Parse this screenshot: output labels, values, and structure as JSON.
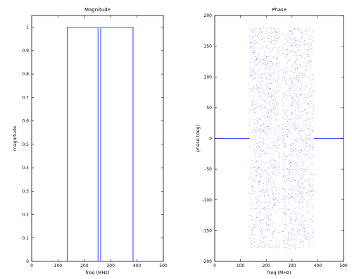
{
  "colors": {
    "line": "#3b4ff0",
    "axis": "#000000",
    "background": "#ffffff"
  },
  "chart_data": [
    {
      "type": "line",
      "title": "Magnitude",
      "xlabel": "freq (MHz)",
      "ylabel": "magnitude",
      "xlim": [
        0,
        500
      ],
      "ylim": [
        0,
        1.05
      ],
      "xticks": [
        0,
        100,
        200,
        300,
        400,
        500
      ],
      "yticks": [
        0,
        0.1,
        0.2,
        0.3,
        0.4,
        0.5,
        0.6,
        0.7,
        0.8,
        0.9,
        1
      ],
      "grid": false,
      "series": [
        {
          "x": [
            0,
            135,
            135,
            252,
            252,
            262,
            262,
            385,
            385,
            500
          ],
          "y": [
            0,
            0,
            1,
            1,
            0,
            0,
            1,
            1,
            0,
            0
          ]
        }
      ]
    },
    {
      "type": "scatter",
      "title": "Phase",
      "xlabel": "freq (MHz)",
      "ylabel": "phase (deg)",
      "xlim": [
        0,
        500
      ],
      "ylim": [
        -200,
        200
      ],
      "xticks": [
        0,
        100,
        200,
        300,
        400,
        500
      ],
      "yticks": [
        -200,
        -150,
        -100,
        -50,
        0,
        50,
        100,
        150,
        200
      ],
      "grid": false,
      "series": [
        {
          "style": "line",
          "x": [
            0,
            135
          ],
          "y": [
            0,
            0
          ]
        },
        {
          "style": "random-points",
          "x_range": [
            135,
            252
          ],
          "y_range": [
            -180,
            180
          ]
        },
        {
          "style": "random-points",
          "x_range": [
            262,
            385
          ],
          "y_range": [
            -180,
            180
          ]
        },
        {
          "style": "line",
          "x": [
            385,
            500
          ],
          "y": [
            0,
            0
          ]
        }
      ]
    }
  ]
}
